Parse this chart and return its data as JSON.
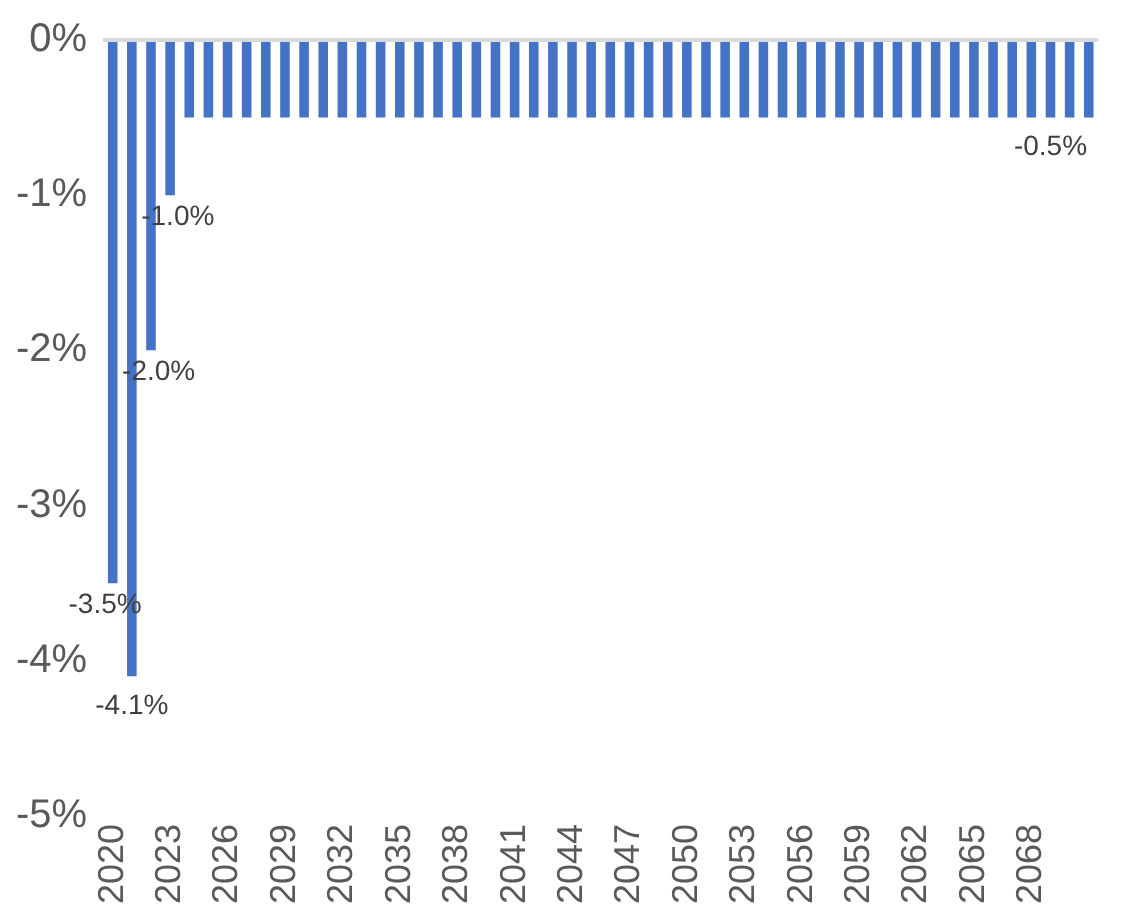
{
  "chart_data": {
    "type": "bar",
    "categories": [
      "2020",
      null,
      null,
      "2023",
      null,
      null,
      "2026",
      null,
      null,
      "2029",
      null,
      null,
      "2032",
      null,
      null,
      "2035",
      null,
      null,
      "2038",
      null,
      null,
      "2041",
      null,
      null,
      "2044",
      null,
      null,
      "2047",
      null,
      null,
      "2050",
      null,
      null,
      "2053",
      null,
      null,
      "2056",
      null,
      null,
      "2059",
      null,
      null,
      "2062",
      null,
      null,
      "2065",
      null,
      null,
      "2068",
      null,
      null,
      null
    ],
    "values": [
      -3.5,
      -4.1,
      -2.0,
      -1.0,
      -0.5,
      -0.5,
      -0.5,
      -0.5,
      -0.5,
      -0.5,
      -0.5,
      -0.5,
      -0.5,
      -0.5,
      -0.5,
      -0.5,
      -0.5,
      -0.5,
      -0.5,
      -0.5,
      -0.5,
      -0.5,
      -0.5,
      -0.5,
      -0.5,
      -0.5,
      -0.5,
      -0.5,
      -0.5,
      -0.5,
      -0.5,
      -0.5,
      -0.5,
      -0.5,
      -0.5,
      -0.5,
      -0.5,
      -0.5,
      -0.5,
      -0.5,
      -0.5,
      -0.5,
      -0.5,
      -0.5,
      -0.5,
      -0.5,
      -0.5,
      -0.5,
      -0.5,
      -0.5,
      -0.5,
      -0.5
    ],
    "value_labels": [
      "-3.5%",
      "-4.1%",
      "-2.0%",
      "-1.0%",
      null,
      null,
      null,
      null,
      null,
      null,
      null,
      null,
      null,
      null,
      null,
      null,
      null,
      null,
      null,
      null,
      null,
      null,
      null,
      null,
      null,
      null,
      null,
      null,
      null,
      null,
      null,
      null,
      null,
      null,
      null,
      null,
      null,
      null,
      null,
      null,
      null,
      null,
      null,
      null,
      null,
      null,
      null,
      null,
      null,
      "-0.5%",
      null,
      null
    ],
    "color": "#4472c4",
    "ylim": [
      -5,
      0
    ],
    "yticks": [
      {
        "value": 0,
        "label": "0%"
      },
      {
        "value": -1,
        "label": "-1%"
      },
      {
        "value": -2,
        "label": "-2%"
      },
      {
        "value": -3,
        "label": "-3%"
      },
      {
        "value": -4,
        "label": "-4%"
      },
      {
        "value": -5,
        "label": "-5%"
      }
    ],
    "grid": false,
    "legend": false
  }
}
